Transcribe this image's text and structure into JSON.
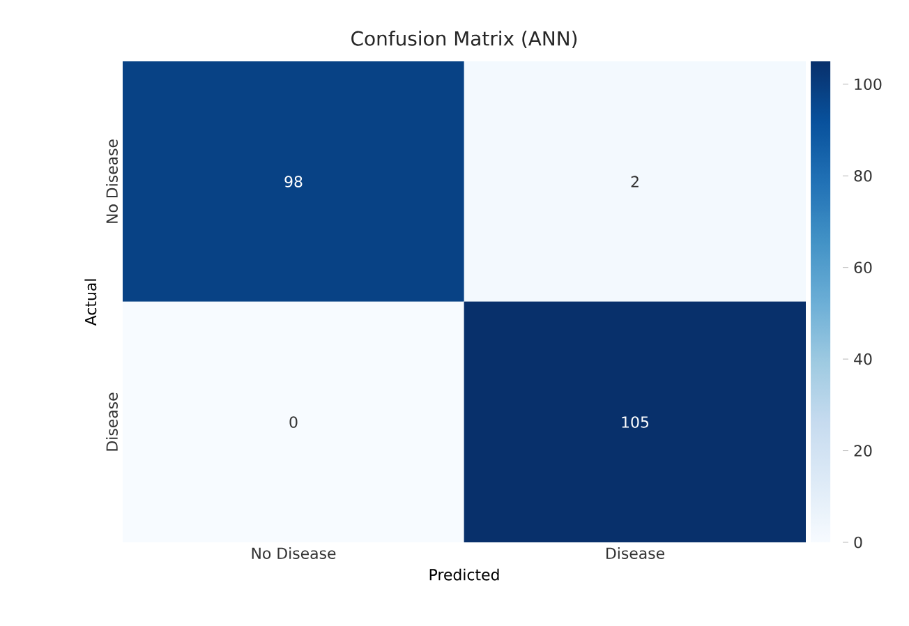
{
  "chart_data": {
    "type": "heatmap",
    "title": "Confusion Matrix (ANN)",
    "xlabel": "Predicted",
    "ylabel": "Actual",
    "categories": [
      "No Disease",
      "Disease"
    ],
    "y_categories": [
      "No Disease",
      "Disease"
    ],
    "cells": [
      [
        98,
        2
      ],
      [
        0,
        105
      ]
    ],
    "data_labels": true,
    "clim": [
      0,
      105
    ],
    "cticks": [
      0,
      20,
      40,
      60,
      80,
      100
    ]
  }
}
